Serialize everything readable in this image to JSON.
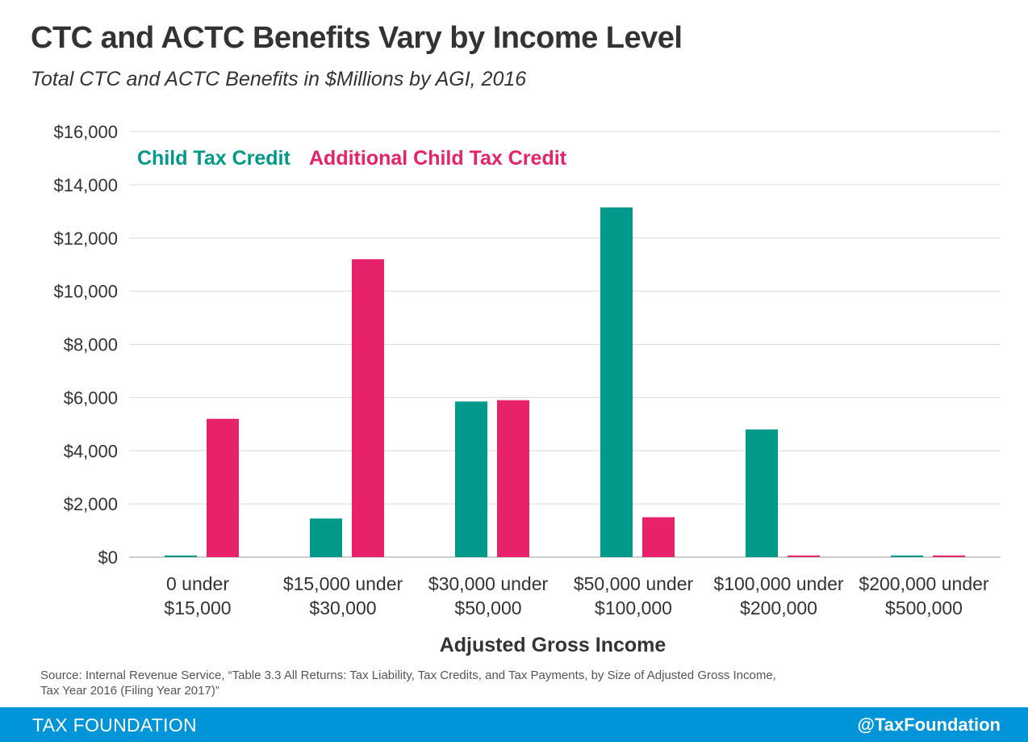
{
  "header": {
    "title": "CTC and ACTC Benefits Vary by Income Level",
    "subtitle": "Total CTC and ACTC Benefits in $Millions by AGI, 2016"
  },
  "chart_data": {
    "type": "bar",
    "categories": [
      [
        "0 under",
        "$15,000"
      ],
      [
        "$15,000 under",
        "$30,000"
      ],
      [
        "$30,000 under",
        "$50,000"
      ],
      [
        "$50,000 under",
        "$100,000"
      ],
      [
        "$100,000 under",
        "$200,000"
      ],
      [
        "$200,000 under",
        "$500,000"
      ]
    ],
    "series": [
      {
        "name": "Child Tax Credit",
        "color": "#00998a",
        "values": [
          60,
          1450,
          5850,
          13150,
          4800,
          60
        ]
      },
      {
        "name": "Additional Child Tax Credit",
        "color": "#e8226a",
        "values": [
          5200,
          11200,
          5900,
          1500,
          60,
          60
        ]
      }
    ],
    "ylim": [
      0,
      16000
    ],
    "yticks": [
      0,
      2000,
      4000,
      6000,
      8000,
      10000,
      12000,
      14000,
      16000
    ],
    "ytick_labels": [
      "$0",
      "$2,000",
      "$4,000",
      "$6,000",
      "$8,000",
      "$10,000",
      "$12,000",
      "$14,000",
      "$16,000"
    ],
    "xlabel": "Adjusted Gross Income",
    "ylabel": "",
    "grid": true,
    "legend_position": "top-left"
  },
  "source": {
    "line1": "Source: Internal Revenue Service, “Table 3.3 All Returns: Tax Liability, Tax Credits, and Tax Payments, by Size of Adjusted Gross Income,",
    "line2": "Tax Year 2016 (Filing Year 2017)”"
  },
  "footer": {
    "brand": "TAX FOUNDATION",
    "handle": "@TaxFoundation"
  }
}
